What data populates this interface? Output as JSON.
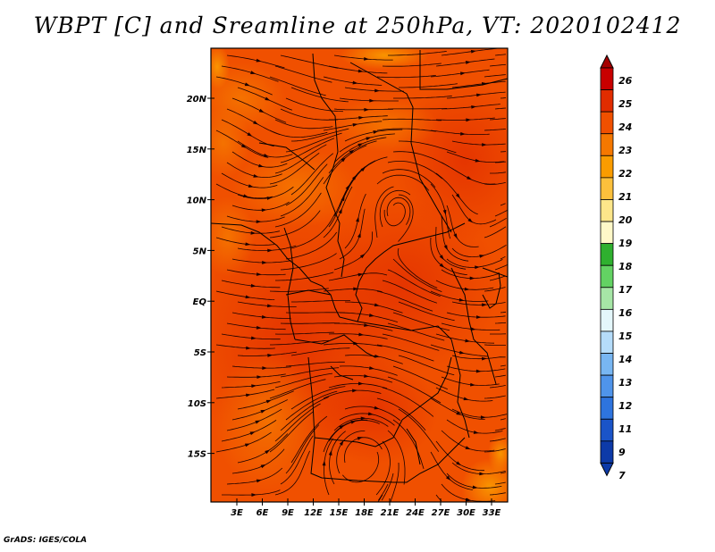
{
  "title": "WBPT [C] and Sreamline at 250hPa, VT: 2020102412",
  "footer": "GrADS: IGES/COLA",
  "map": {
    "lat_labels": [
      "20N",
      "15N",
      "10N",
      "5N",
      "EQ",
      "5S",
      "10S",
      "15S"
    ],
    "lon_labels": [
      "3E",
      "6E",
      "9E",
      "12E",
      "15E",
      "18E",
      "21E",
      "24E",
      "27E",
      "30E",
      "33E"
    ],
    "field_range_c": [
      22,
      25
    ]
  },
  "colorbar": {
    "labels": [
      "26",
      "25",
      "24",
      "23",
      "22",
      "21",
      "20",
      "19",
      "18",
      "17",
      "16",
      "15",
      "14",
      "13",
      "12",
      "11",
      "9",
      "7"
    ],
    "colors": [
      "#a50000",
      "#c80000",
      "#e12c00",
      "#f05000",
      "#f57800",
      "#fa9c00",
      "#fcc03c",
      "#fde68a",
      "#fff8c8",
      "#2fb02f",
      "#63d263",
      "#a6e6a6",
      "#e4f7fb",
      "#b5dcfa",
      "#78b6f2",
      "#4f94ea",
      "#2e74de",
      "#1a54c8",
      "#0d3aa8"
    ]
  }
}
